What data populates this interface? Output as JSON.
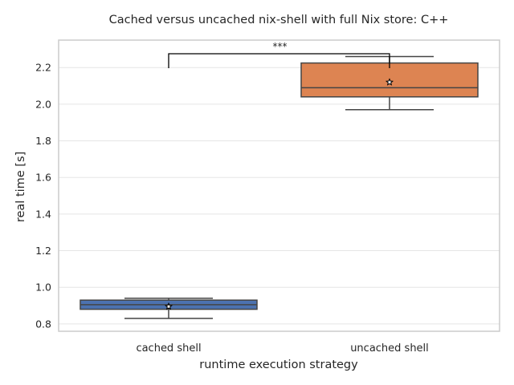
{
  "chart_data": {
    "type": "box",
    "title": "Cached versus uncached nix-shell with full Nix store: C++",
    "xlabel": "runtime execution strategy",
    "ylabel": "real time [s]",
    "ylim": [
      0.76,
      2.35
    ],
    "yticks": [
      0.8,
      1.0,
      1.2,
      1.4,
      1.6,
      1.8,
      2.0,
      2.2
    ],
    "grid": "horizontal",
    "categories": [
      "cached shell",
      "uncached shell"
    ],
    "boxes": [
      {
        "name": "cached shell",
        "whisker_low": 0.83,
        "q1": 0.88,
        "median": 0.905,
        "q3": 0.93,
        "whisker_high": 0.94,
        "mean": 0.895
      },
      {
        "name": "uncached shell",
        "whisker_low": 1.97,
        "q1": 2.04,
        "median": 2.09,
        "q3": 2.225,
        "whisker_high": 2.26,
        "mean": 2.12
      }
    ],
    "significance": {
      "between": [
        "cached shell",
        "uncached shell"
      ],
      "label": "***"
    },
    "colors": {
      "cached shell": "#4c72b0",
      "uncached shell": "#dd8452",
      "grid": "#e5e5e5",
      "frame": "#cccccc",
      "lines": "#444444"
    }
  }
}
